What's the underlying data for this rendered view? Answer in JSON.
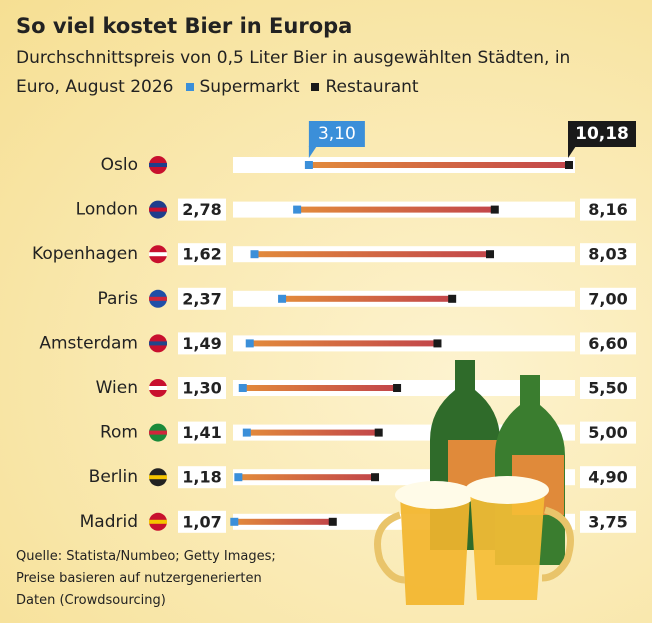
{
  "chart_data": {
    "type": "dumbbell",
    "title": "So viel kostet Bier in Europa",
    "subtitle": "Durchschnittspreis von 0,5 Liter Bier in ausgewählten Städten, in Euro, August 2026",
    "categories": [
      "Oslo",
      "London",
      "Kopenhagen",
      "Paris",
      "Amsterdam",
      "Wien",
      "Rom",
      "Berlin",
      "Madrid"
    ],
    "series": [
      {
        "name": "Supermarkt",
        "color": "#3b8fd9",
        "values": [
          3.1,
          2.78,
          1.62,
          2.37,
          1.49,
          1.3,
          1.41,
          1.18,
          1.07
        ],
        "value_labels": [
          "3,10",
          "2,78",
          "1,62",
          "2,37",
          "1,49",
          "1,30",
          "1,41",
          "1,18",
          "1,07"
        ]
      },
      {
        "name": "Restaurant",
        "color": "#1a1a1a",
        "values": [
          10.18,
          8.16,
          8.03,
          7.0,
          6.6,
          5.5,
          5.0,
          4.9,
          3.75
        ],
        "value_labels": [
          "10,18",
          "8,16",
          "8,03",
          "7,00",
          "6,60",
          "5,50",
          "5,00",
          "4,90",
          "3,75"
        ]
      }
    ],
    "source": [
      "Quelle: Statista/Numbeo; Getty Images;",
      "Preise basieren auf nutzergenerierten",
      "Daten (Crowdsourcing)"
    ]
  }
}
